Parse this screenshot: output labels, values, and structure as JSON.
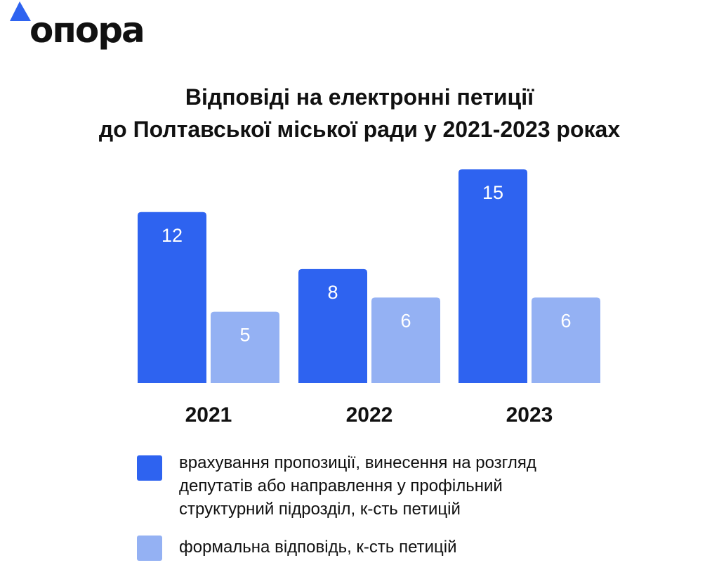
{
  "brand": {
    "name": "опора",
    "accent": "#2E63F0"
  },
  "title_lines": [
    "Відповіді на електронні петиції",
    "до Полтавської міської ради у 2021-2023 роках"
  ],
  "chart_data": {
    "type": "bar",
    "title": "Відповіді на електронні петиції до Полтавської міської ради у 2021-2023 роках",
    "categories": [
      "2021",
      "2022",
      "2023"
    ],
    "series": [
      {
        "name": "врахування пропозиції, винесення на розгляд депутатів або направлення у профільний структурний підрозділ, к-сть петицій",
        "values": [
          12,
          8,
          15
        ],
        "color": "#2E63F0"
      },
      {
        "name": "формальна відповідь, к-сть петицій",
        "values": [
          5,
          6,
          6
        ],
        "color": "#94B1F3"
      }
    ],
    "xlabel": "",
    "ylabel": "",
    "ylim": [
      0,
      15
    ],
    "grid": false,
    "legend": "bottom"
  },
  "legend": {
    "items": [
      {
        "lines": [
          "врахування пропозиції, винесення на розгляд",
          "депутатів або направлення у профільний",
          "структурний підрозділ, к-сть петицій"
        ],
        "color": "#2E63F0"
      },
      {
        "lines": [
          "формальна відповідь, к-сть петицій"
        ],
        "color": "#94B1F3"
      }
    ]
  }
}
